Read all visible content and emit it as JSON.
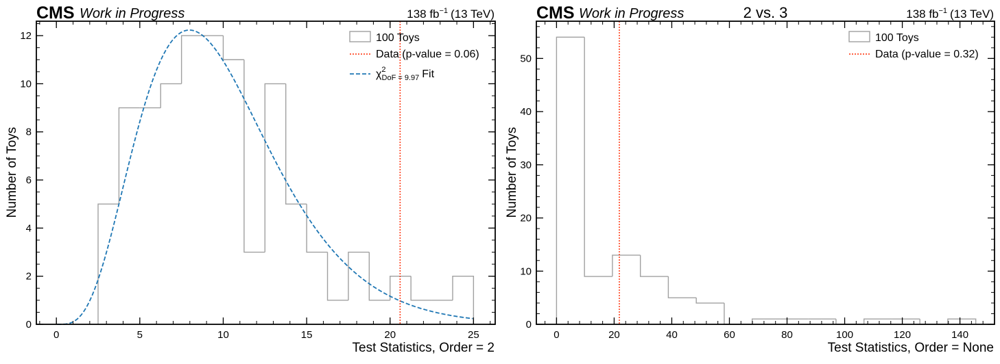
{
  "chart_data": [
    {
      "type": "histogram",
      "header": {
        "experiment": "CMS",
        "status": "Work in Progress",
        "lumi": "138 fb",
        "lumi_exp": "−1",
        "energy": "(13 TeV)"
      },
      "title": "",
      "xlabel": "Test Statistics, Order = 2",
      "ylabel": "Number of Toys",
      "xlim": [
        -1.2,
        26.3
      ],
      "ylim": [
        0,
        12.6
      ],
      "xticks": [
        0,
        5,
        10,
        15,
        20,
        25
      ],
      "yticks": [
        0,
        2,
        4,
        6,
        8,
        10,
        12
      ],
      "bin_edges": [
        2.5,
        3.75,
        5.0,
        6.25,
        7.5,
        8.75,
        10.0,
        11.25,
        12.5,
        13.75,
        15.0,
        16.25,
        17.5,
        18.75,
        20.0,
        21.25,
        22.5,
        23.75,
        25.0
      ],
      "counts": [
        5,
        9,
        9,
        10,
        12,
        12,
        11,
        3,
        10,
        5,
        3,
        1,
        3,
        1,
        2,
        1,
        1,
        2
      ],
      "data_x": 20.6,
      "fit": {
        "dof": 9.97,
        "norm": 100
      },
      "legend_position": "top-right",
      "legend": {
        "hist": "100 Toys",
        "data": "Data (p-value = 0.06)",
        "fit_prefix": "χ",
        "fit_sup": "2",
        "fit_sub": "DoF = 9.97",
        "fit_suffix": "Fit"
      },
      "colors": {
        "hist": "#a0a0a0",
        "data": "#ff2a00",
        "fit": "#1f77b4"
      }
    },
    {
      "type": "histogram",
      "header": {
        "experiment": "CMS",
        "status": "Work in Progress",
        "lumi": "138 fb",
        "lumi_exp": "−1",
        "energy": "(13 TeV)"
      },
      "title": "2 vs. 3",
      "xlabel": "Test Statistics, Order = None",
      "ylabel": "Number of Toys",
      "xlim": [
        -7,
        152
      ],
      "ylim": [
        0,
        57
      ],
      "xticks": [
        0,
        20,
        40,
        60,
        80,
        100,
        120,
        140
      ],
      "yticks": [
        0,
        10,
        20,
        30,
        40,
        50
      ],
      "bin_edges": [
        0,
        9.7,
        19.4,
        29.1,
        38.8,
        48.5,
        58.2,
        67.9,
        77.6,
        87.3,
        97.0,
        106.7,
        116.4,
        126.1,
        135.8,
        145.5
      ],
      "counts": [
        54,
        9,
        13,
        9,
        5,
        4,
        0,
        1,
        1,
        1,
        0,
        1,
        1,
        0,
        1
      ],
      "data_x": 21.8,
      "legend_position": "top-right",
      "legend": {
        "hist": "100 Toys",
        "data": "Data (p-value = 0.32)"
      },
      "colors": {
        "hist": "#a0a0a0",
        "data": "#ff2a00"
      }
    }
  ]
}
